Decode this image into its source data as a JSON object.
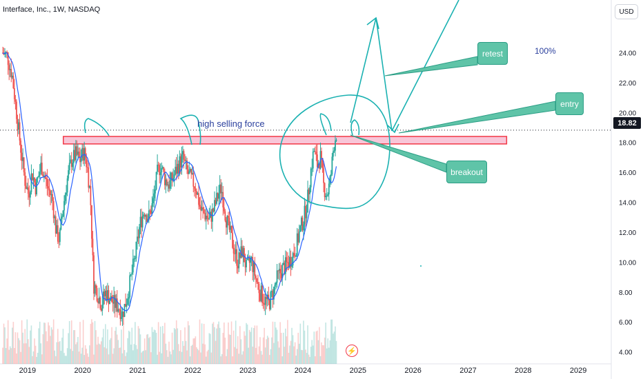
{
  "header": {
    "ticker_line": "Interface, Inc., 1W, NASDAQ"
  },
  "currency_button": "USD",
  "last_price": "18.82",
  "annotations": {
    "high_selling_force": "high selling force",
    "hundred_percent": "100%",
    "retest": "retest",
    "entry": "entry",
    "breakout": "breakout"
  },
  "colors": {
    "up_candle": "#26a69a",
    "down_candle": "#ef5350",
    "moving_average": "#2962ff",
    "drawing": "#1ab1b1",
    "resistance_zone_fill": "#f8c6d8",
    "resistance_zone_border": "#f23645",
    "label_fill": "#5fc4a8",
    "annotation_text": "#2a3f9d"
  },
  "icons": {
    "flash": "lightning-icon"
  },
  "chart_data": {
    "type": "candlestick",
    "title": "Interface, Inc., 1W, NASDAQ",
    "x_ticks": [
      "2019",
      "2020",
      "2021",
      "2022",
      "2023",
      "2024",
      "2025",
      "2026",
      "2027",
      "2028",
      "2029"
    ],
    "y_ticks": [
      "4.00",
      "6.00",
      "8.00",
      "10.00",
      "12.00",
      "14.00",
      "16.00",
      "18.00",
      "20.00",
      "22.00",
      "24.00"
    ],
    "ylim": [
      3.2,
      26.6
    ],
    "xlim": [
      2018.5,
      2029.6
    ],
    "last_price": 18.82,
    "grid": false,
    "resistance_zone": {
      "low": 17.9,
      "high": 18.4,
      "x_from": 2019.65,
      "x_to": 2027.7
    },
    "price_path": [
      [
        2018.55,
        24.0
      ],
      [
        2018.63,
        23.8
      ],
      [
        2018.72,
        22.5
      ],
      [
        2018.8,
        20.0
      ],
      [
        2018.88,
        17.5
      ],
      [
        2018.95,
        15.5
      ],
      [
        2019.02,
        14.5
      ],
      [
        2019.08,
        16.0
      ],
      [
        2019.15,
        15.0
      ],
      [
        2019.25,
        16.5
      ],
      [
        2019.35,
        15.2
      ],
      [
        2019.45,
        14.2
      ],
      [
        2019.52,
        12.0
      ],
      [
        2019.58,
        11.5
      ],
      [
        2019.64,
        13.5
      ],
      [
        2019.72,
        15.5
      ],
      [
        2019.8,
        16.8
      ],
      [
        2019.88,
        17.2
      ],
      [
        2019.95,
        16.8
      ],
      [
        2020.02,
        17.4
      ],
      [
        2020.08,
        16.5
      ],
      [
        2020.14,
        14.5
      ],
      [
        2020.2,
        8.5
      ],
      [
        2020.26,
        8.0
      ],
      [
        2020.34,
        7.2
      ],
      [
        2020.42,
        8.0
      ],
      [
        2020.5,
        7.5
      ],
      [
        2020.58,
        7.2
      ],
      [
        2020.66,
        7.0
      ],
      [
        2020.72,
        6.5
      ],
      [
        2020.8,
        7.5
      ],
      [
        2020.88,
        9.0
      ],
      [
        2020.96,
        10.5
      ],
      [
        2021.04,
        12.5
      ],
      [
        2021.12,
        13.5
      ],
      [
        2021.2,
        13.0
      ],
      [
        2021.28,
        14.0
      ],
      [
        2021.36,
        16.0
      ],
      [
        2021.42,
        16.5
      ],
      [
        2021.5,
        15.5
      ],
      [
        2021.58,
        15.2
      ],
      [
        2021.66,
        15.8
      ],
      [
        2021.74,
        16.5
      ],
      [
        2021.82,
        17.0
      ],
      [
        2021.9,
        16.0
      ],
      [
        2021.98,
        15.5
      ],
      [
        2022.06,
        15.0
      ],
      [
        2022.14,
        13.5
      ],
      [
        2022.22,
        13.2
      ],
      [
        2022.3,
        12.8
      ],
      [
        2022.38,
        13.5
      ],
      [
        2022.46,
        14.5
      ],
      [
        2022.52,
        15.0
      ],
      [
        2022.6,
        13.0
      ],
      [
        2022.66,
        12.2
      ],
      [
        2022.74,
        11.0
      ],
      [
        2022.82,
        10.0
      ],
      [
        2022.9,
        10.8
      ],
      [
        2022.98,
        9.5
      ],
      [
        2023.06,
        10.2
      ],
      [
        2023.14,
        9.0
      ],
      [
        2023.22,
        8.0
      ],
      [
        2023.3,
        7.5
      ],
      [
        2023.38,
        7.2
      ],
      [
        2023.46,
        8.0
      ],
      [
        2023.54,
        9.0
      ],
      [
        2023.62,
        9.5
      ],
      [
        2023.7,
        9.8
      ],
      [
        2023.78,
        10.2
      ],
      [
        2023.86,
        10.8
      ],
      [
        2023.94,
        12.0
      ],
      [
        2024.02,
        13.0
      ],
      [
        2024.08,
        14.0
      ],
      [
        2024.14,
        16.0
      ],
      [
        2024.2,
        17.5
      ],
      [
        2024.26,
        16.5
      ],
      [
        2024.32,
        17.0
      ],
      [
        2024.38,
        15.0
      ],
      [
        2024.44,
        14.5
      ],
      [
        2024.5,
        15.5
      ],
      [
        2024.56,
        17.8
      ],
      [
        2024.62,
        18.82
      ]
    ],
    "volume_note": "volume histogram along bottom"
  }
}
